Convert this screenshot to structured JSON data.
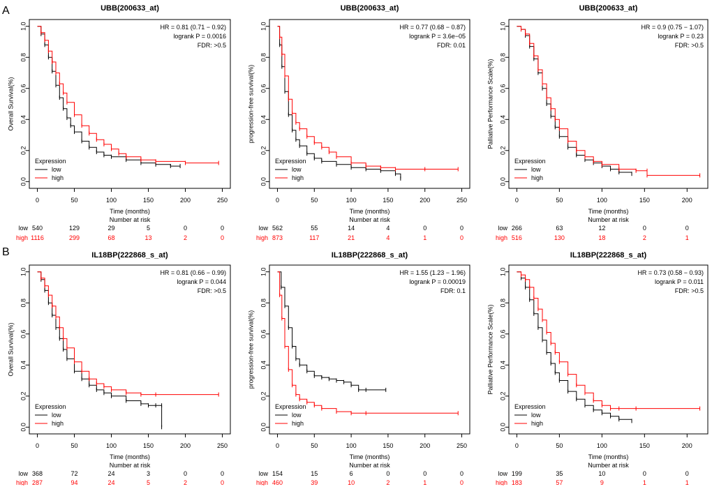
{
  "colors": {
    "low": "#000000",
    "high": "#ff0000"
  },
  "rows": [
    {
      "letter": "A"
    },
    {
      "letter": "B"
    }
  ],
  "chart_data": [
    {
      "type": "line",
      "title": "UBB(200633_at)",
      "xlabel": "Time (months)",
      "ylabel": "Overall Survival(%)",
      "xlim": [
        0,
        250
      ],
      "ylim": [
        0,
        1
      ],
      "xticks": [
        0,
        50,
        100,
        150,
        200,
        250
      ],
      "yticks": [
        0.0,
        0.2,
        0.4,
        0.6,
        0.8,
        1.0
      ],
      "stats": [
        "HR = 0.81 (0.71 − 0.92)",
        "logrank P = 0.0016",
        "FDR:  >0.5"
      ],
      "legend_title": "Expression",
      "series": [
        {
          "name": "low",
          "x": [
            0,
            5,
            10,
            15,
            20,
            25,
            30,
            35,
            40,
            45,
            50,
            60,
            70,
            80,
            90,
            100,
            120,
            140,
            160,
            180,
            193
          ],
          "y": [
            1.0,
            0.95,
            0.88,
            0.8,
            0.71,
            0.62,
            0.54,
            0.47,
            0.41,
            0.36,
            0.32,
            0.26,
            0.22,
            0.19,
            0.17,
            0.16,
            0.14,
            0.12,
            0.11,
            0.1,
            0.1
          ]
        },
        {
          "name": "high",
          "x": [
            0,
            5,
            10,
            15,
            20,
            25,
            30,
            35,
            40,
            50,
            60,
            70,
            80,
            90,
            100,
            110,
            120,
            140,
            160,
            200,
            245
          ],
          "y": [
            1.0,
            0.96,
            0.91,
            0.84,
            0.77,
            0.7,
            0.63,
            0.57,
            0.51,
            0.43,
            0.36,
            0.31,
            0.27,
            0.24,
            0.21,
            0.18,
            0.16,
            0.14,
            0.13,
            0.12,
            0.12
          ]
        }
      ],
      "risk_title": "Number at risk",
      "risk_times": [
        0,
        50,
        100,
        150,
        200,
        250
      ],
      "risk": {
        "low": [
          "540",
          "129",
          "29",
          "5",
          "0",
          "0"
        ],
        "high": [
          "1116",
          "299",
          "68",
          "13",
          "2",
          "0"
        ]
      }
    },
    {
      "type": "line",
      "title": "UBB(200633_at)",
      "xlabel": "Time (months)",
      "ylabel": "progression-free survival(%)",
      "xlim": [
        0,
        250
      ],
      "ylim": [
        0,
        1
      ],
      "xticks": [
        0,
        50,
        100,
        150,
        200,
        250
      ],
      "yticks": [
        0.0,
        0.2,
        0.4,
        0.6,
        0.8,
        1.0
      ],
      "stats": [
        "HR = 0.77 (0.68 − 0.87)",
        "logrank P = 3.6e−05",
        "FDR:  0.01"
      ],
      "legend_title": "Expression",
      "series": [
        {
          "name": "low",
          "x": [
            0,
            3,
            6,
            10,
            15,
            20,
            25,
            30,
            40,
            50,
            60,
            80,
            100,
            120,
            140,
            160,
            167
          ],
          "y": [
            1.0,
            0.88,
            0.74,
            0.58,
            0.43,
            0.33,
            0.27,
            0.23,
            0.18,
            0.15,
            0.13,
            0.11,
            0.09,
            0.08,
            0.07,
            0.05,
            0.02
          ]
        },
        {
          "name": "high",
          "x": [
            0,
            3,
            6,
            10,
            15,
            20,
            25,
            30,
            40,
            50,
            60,
            70,
            80,
            100,
            120,
            140,
            160,
            200,
            245
          ],
          "y": [
            1.0,
            0.93,
            0.82,
            0.68,
            0.53,
            0.44,
            0.38,
            0.34,
            0.29,
            0.25,
            0.22,
            0.19,
            0.16,
            0.12,
            0.1,
            0.09,
            0.08,
            0.08,
            0.08
          ]
        }
      ],
      "risk_title": "Number at risk",
      "risk_times": [
        0,
        50,
        100,
        150,
        200,
        250
      ],
      "risk": {
        "low": [
          "562",
          "55",
          "14",
          "4",
          "0",
          "0"
        ],
        "high": [
          "873",
          "117",
          "21",
          "4",
          "1",
          "0"
        ]
      }
    },
    {
      "type": "line",
      "title": "UBB(200633_at)",
      "xlabel": "Time (months)",
      "ylabel": "Palliative Performance Scale(%)",
      "xlim": [
        0,
        215
      ],
      "ylim": [
        0,
        1
      ],
      "xticks": [
        0,
        50,
        100,
        150,
        200
      ],
      "yticks": [
        0.0,
        0.2,
        0.4,
        0.6,
        0.8,
        1.0
      ],
      "stats": [
        "HR = 0.9 (0.75 − 1.07)",
        "logrank P = 0.23",
        "FDR:  >0.5"
      ],
      "legend_title": "Expression",
      "series": [
        {
          "name": "low",
          "x": [
            0,
            5,
            10,
            15,
            20,
            25,
            30,
            35,
            40,
            45,
            50,
            60,
            70,
            80,
            90,
            100,
            110,
            120,
            135
          ],
          "y": [
            1.0,
            0.98,
            0.94,
            0.87,
            0.79,
            0.7,
            0.6,
            0.5,
            0.42,
            0.35,
            0.29,
            0.22,
            0.17,
            0.14,
            0.12,
            0.1,
            0.08,
            0.06,
            0.05
          ]
        },
        {
          "name": "high",
          "x": [
            0,
            5,
            10,
            15,
            20,
            25,
            30,
            35,
            40,
            45,
            50,
            60,
            70,
            80,
            90,
            100,
            120,
            140,
            153,
            153,
            215
          ],
          "y": [
            1.0,
            0.98,
            0.95,
            0.89,
            0.81,
            0.72,
            0.63,
            0.54,
            0.47,
            0.4,
            0.34,
            0.26,
            0.2,
            0.16,
            0.13,
            0.11,
            0.08,
            0.07,
            0.07,
            0.04,
            0.04
          ]
        }
      ],
      "risk_title": "Number at risk",
      "risk_times": [
        0,
        50,
        100,
        150,
        200
      ],
      "risk": {
        "low": [
          "266",
          "63",
          "12",
          "0",
          "0"
        ],
        "high": [
          "516",
          "130",
          "18",
          "2",
          "1"
        ]
      }
    },
    {
      "type": "line",
      "title": "IL18BP(222868_s_at)",
      "xlabel": "Time (months)",
      "ylabel": "Overall Survival(%)",
      "xlim": [
        0,
        250
      ],
      "ylim": [
        0,
        1
      ],
      "xticks": [
        0,
        50,
        100,
        150,
        200,
        250
      ],
      "yticks": [
        0.0,
        0.2,
        0.4,
        0.6,
        0.8,
        1.0
      ],
      "stats": [
        "HR = 0.81 (0.66 − 0.99)",
        "logrank P = 0.044",
        "FDR:  >0.5"
      ],
      "legend_title": "Expression",
      "series": [
        {
          "name": "low",
          "x": [
            0,
            5,
            10,
            15,
            20,
            25,
            30,
            35,
            40,
            50,
            60,
            70,
            80,
            90,
            100,
            120,
            140,
            150,
            160,
            168,
            168
          ],
          "y": [
            1.0,
            0.95,
            0.88,
            0.8,
            0.72,
            0.64,
            0.57,
            0.5,
            0.44,
            0.36,
            0.31,
            0.27,
            0.24,
            0.22,
            0.2,
            0.17,
            0.15,
            0.14,
            0.14,
            0.14,
            0.0
          ]
        },
        {
          "name": "high",
          "x": [
            0,
            5,
            10,
            15,
            20,
            25,
            30,
            35,
            40,
            50,
            60,
            70,
            80,
            90,
            100,
            120,
            140,
            160,
            245
          ],
          "y": [
            1.0,
            0.96,
            0.91,
            0.85,
            0.78,
            0.71,
            0.64,
            0.57,
            0.51,
            0.42,
            0.36,
            0.31,
            0.28,
            0.26,
            0.24,
            0.22,
            0.21,
            0.21,
            0.21
          ]
        }
      ],
      "risk_title": "Number at risk",
      "risk_times": [
        0,
        50,
        100,
        150,
        200,
        250
      ],
      "risk": {
        "low": [
          "368",
          "72",
          "24",
          "3",
          "0",
          "0"
        ],
        "high": [
          "287",
          "94",
          "24",
          "5",
          "2",
          "0"
        ]
      }
    },
    {
      "type": "line",
      "title": "IL18BP(222868_s_at)",
      "xlabel": "Time (months)",
      "ylabel": "progression-free survival(%)",
      "xlim": [
        0,
        250
      ],
      "ylim": [
        0,
        1
      ],
      "xticks": [
        0,
        50,
        100,
        150,
        200,
        250
      ],
      "yticks": [
        0.0,
        0.2,
        0.4,
        0.6,
        0.8,
        1.0
      ],
      "stats": [
        "HR = 1.55 (1.23 − 1.96)",
        "logrank P = 0.00019",
        "FDR:  0.1"
      ],
      "legend_title": "Expression",
      "series": [
        {
          "name": "low",
          "x": [
            0,
            5,
            10,
            15,
            20,
            25,
            30,
            40,
            50,
            60,
            70,
            80,
            90,
            100,
            110,
            120,
            147
          ],
          "y": [
            1.0,
            0.9,
            0.78,
            0.64,
            0.52,
            0.44,
            0.4,
            0.36,
            0.33,
            0.32,
            0.31,
            0.3,
            0.29,
            0.27,
            0.24,
            0.24,
            0.24
          ]
        },
        {
          "name": "high",
          "x": [
            0,
            3,
            6,
            10,
            15,
            20,
            25,
            30,
            40,
            50,
            60,
            80,
            100,
            120,
            245
          ],
          "y": [
            1.0,
            0.85,
            0.7,
            0.52,
            0.37,
            0.27,
            0.21,
            0.18,
            0.16,
            0.14,
            0.12,
            0.1,
            0.09,
            0.09,
            0.09
          ]
        }
      ],
      "risk_title": "Number at risk",
      "risk_times": [
        0,
        50,
        100,
        150,
        200,
        250
      ],
      "risk": {
        "low": [
          "154",
          "15",
          "6",
          "0",
          "0",
          "0"
        ],
        "high": [
          "460",
          "39",
          "10",
          "2",
          "1",
          "0"
        ]
      }
    },
    {
      "type": "line",
      "title": "IL18BP(222868_s_at)",
      "xlabel": "Time (months)",
      "ylabel": "Palliative Performance Scale(%)",
      "xlim": [
        0,
        215
      ],
      "ylim": [
        0,
        1
      ],
      "xticks": [
        0,
        50,
        100,
        150,
        200
      ],
      "yticks": [
        0.0,
        0.2,
        0.4,
        0.6,
        0.8,
        1.0
      ],
      "stats": [
        "HR = 0.73 (0.58 − 0.93)",
        "logrank P = 0.011",
        "FDR:  >0.5"
      ],
      "legend_title": "Expression",
      "series": [
        {
          "name": "low",
          "x": [
            0,
            5,
            10,
            15,
            20,
            25,
            30,
            35,
            40,
            45,
            50,
            60,
            70,
            80,
            90,
            100,
            110,
            120,
            135
          ],
          "y": [
            1.0,
            0.96,
            0.9,
            0.82,
            0.73,
            0.64,
            0.56,
            0.48,
            0.41,
            0.35,
            0.3,
            0.23,
            0.18,
            0.14,
            0.11,
            0.09,
            0.07,
            0.05,
            0.04
          ]
        },
        {
          "name": "high",
          "x": [
            0,
            5,
            10,
            15,
            20,
            25,
            30,
            35,
            40,
            45,
            50,
            60,
            70,
            80,
            90,
            100,
            110,
            120,
            140,
            215
          ],
          "y": [
            1.0,
            0.98,
            0.95,
            0.9,
            0.83,
            0.76,
            0.69,
            0.61,
            0.54,
            0.48,
            0.42,
            0.34,
            0.27,
            0.22,
            0.17,
            0.14,
            0.12,
            0.12,
            0.12,
            0.12
          ]
        }
      ],
      "risk_title": "Number at risk",
      "risk_times": [
        0,
        50,
        100,
        150,
        200
      ],
      "risk": {
        "low": [
          "199",
          "35",
          "10",
          "0",
          "0"
        ],
        "high": [
          "183",
          "57",
          "9",
          "1",
          "1"
        ]
      }
    }
  ]
}
